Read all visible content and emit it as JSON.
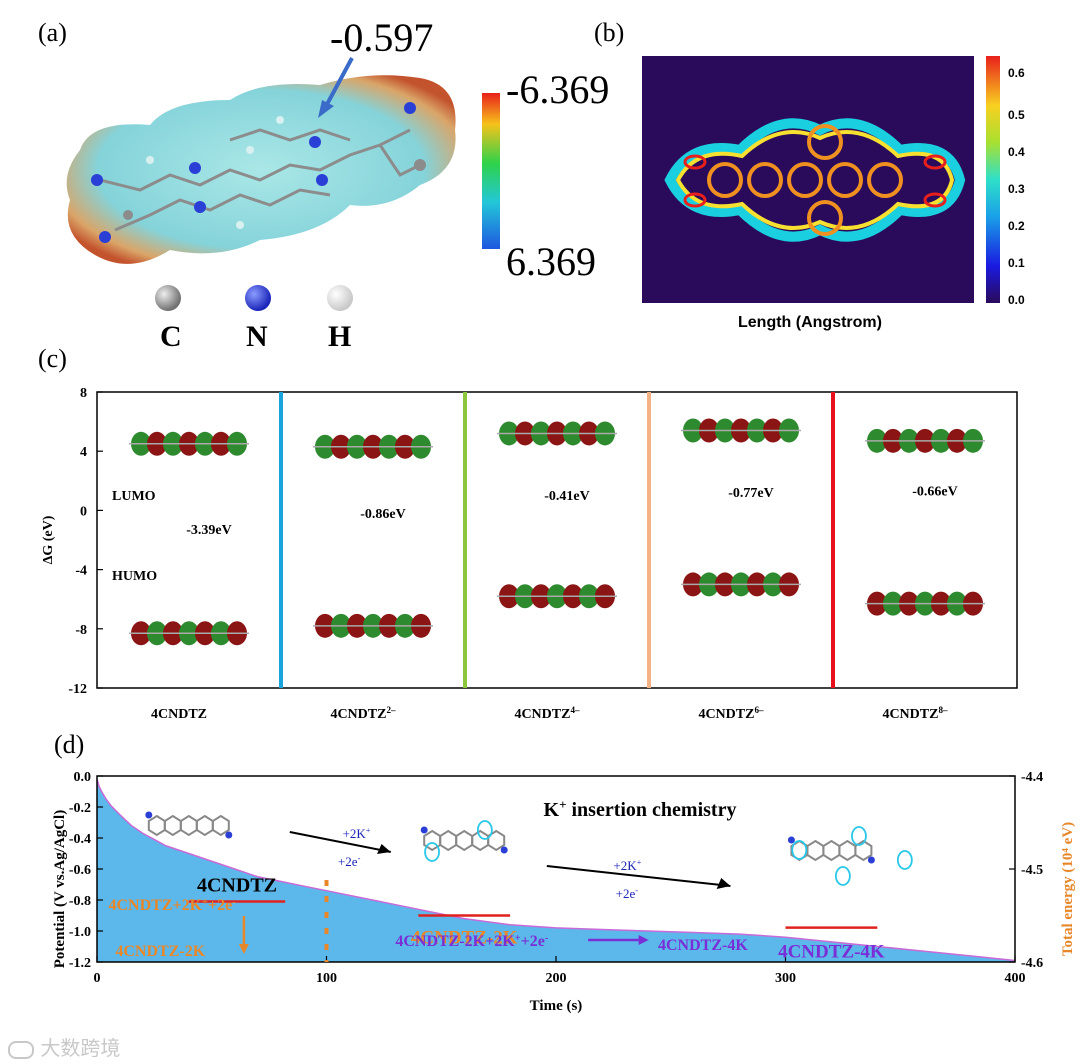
{
  "panel_labels": {
    "a": "(a)",
    "b": "(b)",
    "c": "(c)",
    "d": "(d)"
  },
  "panel_a": {
    "annotation": "-0.597",
    "scale_top": "-6.369",
    "scale_bottom": "6.369",
    "legend": [
      {
        "symbol": "C",
        "color": "#8c8c8c"
      },
      {
        "symbol": "N",
        "color": "#2a3fd6"
      },
      {
        "symbol": "H",
        "color": "#e6e6e6"
      }
    ]
  },
  "panel_b": {
    "xlabel": "Length (Angstrom)",
    "colorbar_ticks": [
      "0.6",
      "0.5",
      "0.4",
      "0.3",
      "0.2",
      "0.1",
      "0.0"
    ]
  },
  "chart_data": [
    {
      "type": "scatter",
      "title": "",
      "xlabel": "",
      "ylabel": "ΔG (eV)",
      "ylim": [
        -12,
        8
      ],
      "yticks": [
        8,
        4,
        0,
        -4,
        -8,
        -12
      ],
      "row_labels": {
        "lumo": "LUMO",
        "homo": "HUMO"
      },
      "categories": [
        "4CNDTZ",
        "4CNDTZ",
        "4CNDTZ",
        "4CNDTZ",
        "4CNDTZ"
      ],
      "charge_superscripts": [
        "",
        "2–",
        "4–",
        "6–",
        "8–"
      ],
      "gaps": [
        "-3.39eV",
        "-0.86eV",
        "-0.41eV",
        "-0.77eV",
        "-0.66eV"
      ],
      "separator_colors": [
        "#1aa3dc",
        "#8cc63f",
        "#f4b183",
        "#e8101c"
      ]
    },
    {
      "type": "area",
      "title": "K+ insertion chemistry",
      "title_main": "K",
      "title_sup": "+",
      "title_rest": " insertion chemistry",
      "xlabel": "Time (s)",
      "ylabel": "Potential (V vs.Ag/AgCl)",
      "ylabel_right": "Total energy (10⁴ eV)",
      "xlim": [
        0,
        400
      ],
      "ylim": [
        -1.2,
        0.0
      ],
      "xticks": [
        0,
        100,
        200,
        300,
        400
      ],
      "yticks": [
        0.0,
        -0.2,
        -0.4,
        -0.6,
        -0.8,
        -1.0,
        -1.2
      ],
      "ytick_labels": [
        "0.0",
        "-0.2",
        "-0.4",
        "-0.6",
        "-0.8",
        "-1.0",
        "-1.2"
      ],
      "y2lim": [
        -4.6,
        -4.4
      ],
      "y2ticks": [
        -4.4,
        -4.5,
        -4.6
      ],
      "y2tick_labels": [
        "-4.4",
        "-4.5",
        "-4.6"
      ],
      "x": [
        0,
        1,
        2,
        4,
        6,
        8,
        10,
        15,
        20,
        25,
        30,
        40,
        50,
        60,
        70,
        80,
        90,
        100,
        120,
        140,
        160,
        180,
        200,
        220,
        240,
        260,
        280,
        300,
        320,
        340,
        360,
        380,
        400
      ],
      "potential": [
        -0.02,
        -0.07,
        -0.1,
        -0.15,
        -0.19,
        -0.22,
        -0.25,
        -0.32,
        -0.37,
        -0.41,
        -0.45,
        -0.5,
        -0.55,
        -0.6,
        -0.65,
        -0.68,
        -0.71,
        -0.74,
        -0.8,
        -0.86,
        -0.92,
        -0.96,
        -0.98,
        -0.99,
        -1.0,
        -1.01,
        -1.02,
        -1.04,
        -1.07,
        -1.1,
        -1.13,
        -1.16,
        -1.19
      ],
      "energy_levels": [
        {
          "label": "4CNDTZ",
          "x_range": [
            40,
            82
          ],
          "energy": -4.535
        },
        {
          "label": "4CNDTZ-2K",
          "x_range": [
            140,
            180
          ],
          "energy": -4.55
        },
        {
          "label": "4CNDTZ-4K",
          "x_range": [
            300,
            340
          ],
          "energy": -4.563
        }
      ],
      "annotations": {
        "step1_top": "+2K",
        "step1_top_sup": "+",
        "step1_bottom": "+2e",
        "step1_bottom_sup": "-",
        "step2_top": "+2K",
        "step2_top_sup": "+",
        "step2_bottom": "+2e",
        "step2_bottom_sup": "-",
        "reaction1": "4CNDTZ+2K",
        "reaction1_sup1": "+",
        "reaction1_mid": "+2e",
        "reaction1_sup2": "-",
        "product1": "4CNDTZ-2K",
        "reaction2": "4CNDTZ-2K+2K",
        "reaction2_sup1": "+",
        "reaction2_mid": "+2e",
        "reaction2_sup2": "-",
        "product2": "4CNDTZ-4K",
        "dashed_x": 100
      },
      "colors": {
        "fill": "#5cb8ea",
        "line": "#c86ad8",
        "level": "#e0221f",
        "orange": "#e8872a",
        "purple": "#7a2fd6",
        "blue_text": "#1a23b8"
      }
    }
  ],
  "watermark": "大数跨境"
}
